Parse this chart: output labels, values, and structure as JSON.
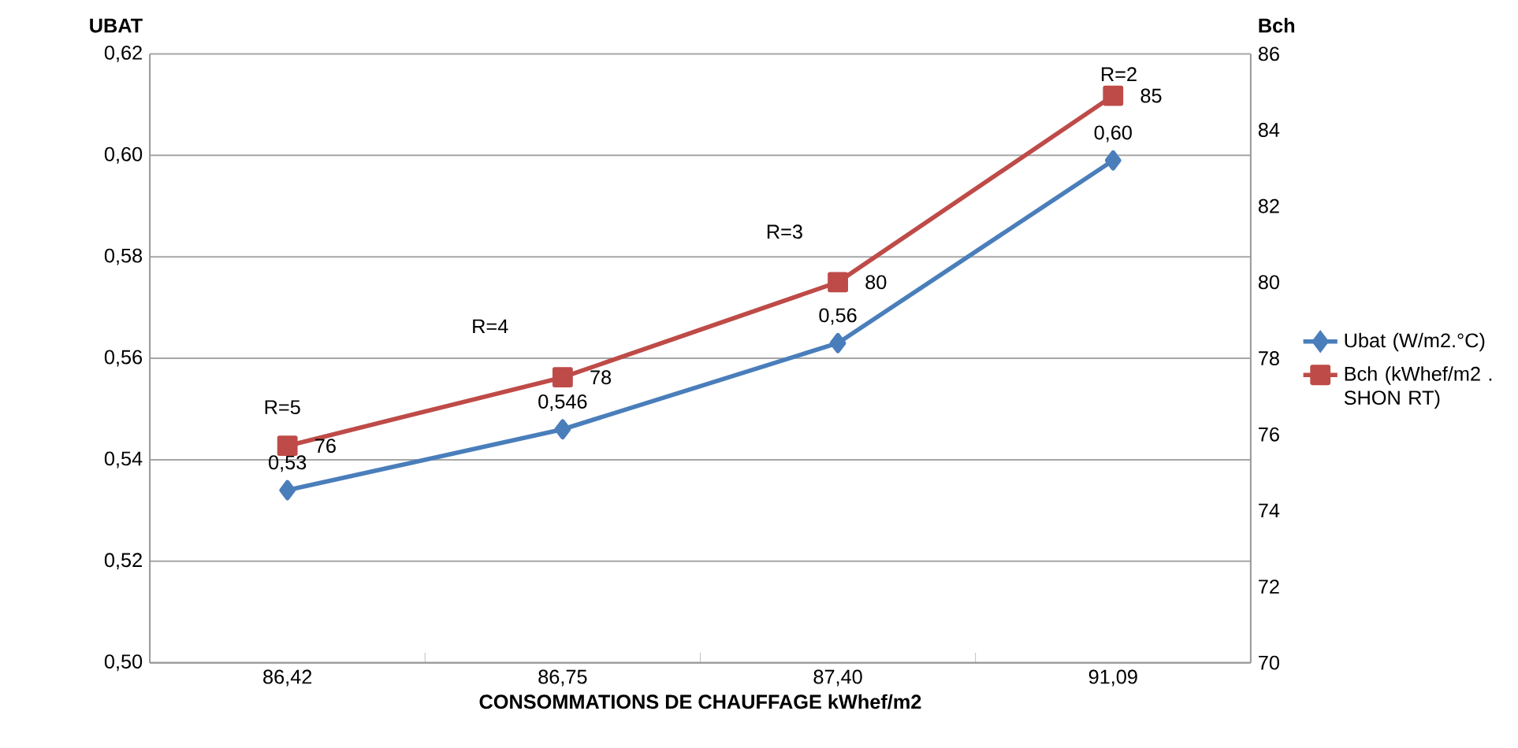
{
  "chart_data": {
    "type": "line",
    "xlabel": "CONSOMMATIONS DE CHAUFFAGE  kWhef/m2",
    "ylabel": "UBAT",
    "y2label": "Bch",
    "categories": [
      "86,42",
      "86,75",
      "87,40",
      "91,09"
    ],
    "series": [
      {
        "name": "Ubat (W/m2.°C)",
        "color": "#4a7ebb",
        "marker": "diamond",
        "values": [
          0.534,
          0.546,
          0.563,
          0.599
        ],
        "value_labels": [
          "0,53",
          "0,546",
          "0,56",
          "0,60"
        ]
      },
      {
        "name": "Bch (kWhef/m2 . SHON RT)",
        "color": "#be4b48",
        "marker": "square",
        "axis": "y2",
        "values": [
          75.7,
          77.5,
          80,
          84.9
        ],
        "value_labels": [
          "76",
          "78",
          "80",
          "85"
        ]
      }
    ],
    "ylim": [
      0.5,
      0.62
    ],
    "yticks": [
      {
        "value": 0.5,
        "label": "0,50"
      },
      {
        "value": 0.52,
        "label": "0,52"
      },
      {
        "value": 0.54,
        "label": "0,54"
      },
      {
        "value": 0.56,
        "label": "0,56"
      },
      {
        "value": 0.58,
        "label": "0,58"
      },
      {
        "value": 0.6,
        "label": "0,60"
      },
      {
        "value": 0.62,
        "label": "0,62"
      }
    ],
    "y2lim": [
      70,
      86
    ],
    "y2ticks": [
      70,
      72,
      74,
      76,
      78,
      80,
      82,
      84,
      86
    ],
    "annotations": [
      "R=5",
      "R=4",
      "R=3",
      "R=2"
    ],
    "grid": "y",
    "legend": "right"
  }
}
